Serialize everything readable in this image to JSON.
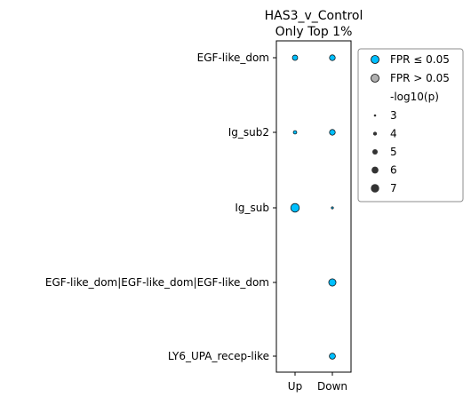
{
  "chart_data": {
    "type": "scatter",
    "title": "HAS3_v_Control",
    "subtitle": "Only Top 1%",
    "x_categories": [
      "Up",
      "Down"
    ],
    "y_categories": [
      "EGF-like_dom",
      "Ig_sub2",
      "Ig_sub",
      "EGF-like_dom|EGF-like_dom|EGF-like_dom",
      "LY6_UPA_recep-like"
    ],
    "points": [
      {
        "x": "Up",
        "y": "EGF-like_dom",
        "neg_log10_p": 4.6,
        "fpr_significant": true
      },
      {
        "x": "Down",
        "y": "EGF-like_dom",
        "neg_log10_p": 4.9,
        "fpr_significant": true
      },
      {
        "x": "Up",
        "y": "Ig_sub2",
        "neg_log10_p": 3.4,
        "fpr_significant": true
      },
      {
        "x": "Down",
        "y": "Ig_sub2",
        "neg_log10_p": 4.9,
        "fpr_significant": true
      },
      {
        "x": "Up",
        "y": "Ig_sub",
        "neg_log10_p": 6.8,
        "fpr_significant": true
      },
      {
        "x": "Down",
        "y": "Ig_sub",
        "neg_log10_p": 2.5,
        "fpr_significant": true
      },
      {
        "x": "Down",
        "y": "EGF-like_dom|EGF-like_dom|EGF-like_dom",
        "neg_log10_p": 5.9,
        "fpr_significant": true
      },
      {
        "x": "Down",
        "y": "LY6_UPA_recep-like",
        "neg_log10_p": 5.1,
        "fpr_significant": true
      }
    ],
    "legend": {
      "position": "upper-right-outside",
      "color_entries": [
        {
          "label": "FPR ≤ 0.05",
          "color": "#00bfff"
        },
        {
          "label": "FPR > 0.05",
          "color": "#b0b0b0"
        }
      ],
      "size_title": "-log10(p)",
      "size_entries": [
        {
          "label": "3",
          "value": 3
        },
        {
          "label": "4",
          "value": 4
        },
        {
          "label": "5",
          "value": 5
        },
        {
          "label": "6",
          "value": 6
        },
        {
          "label": "7",
          "value": 7
        }
      ]
    },
    "colors": {
      "significant": "#00bfff",
      "not_significant": "#b0b0b0",
      "marker_edge": "#000000",
      "size_marker": "#333333"
    },
    "grid": false
  }
}
